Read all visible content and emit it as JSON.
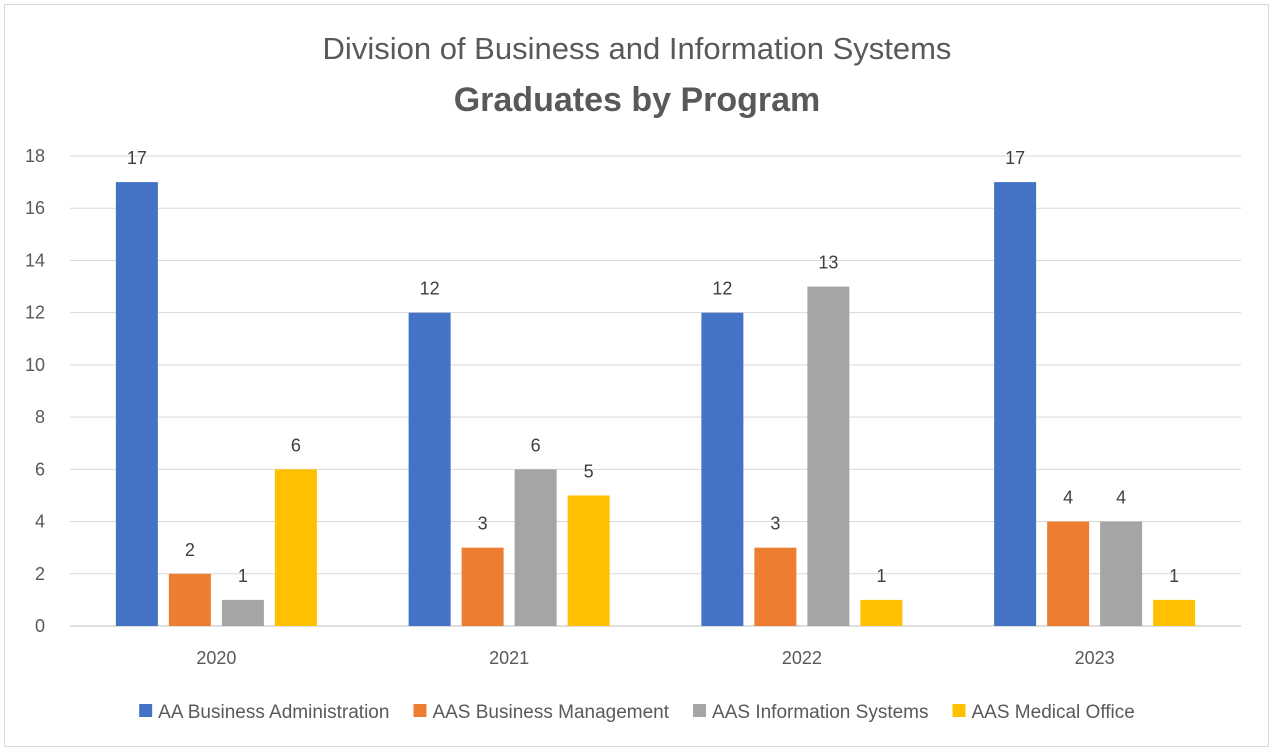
{
  "chart_data": {
    "type": "bar",
    "title": "Division of Business and Information Systems",
    "subtitle": "Graduates by Program",
    "categories": [
      "2020",
      "2021",
      "2022",
      "2023"
    ],
    "series": [
      {
        "name": "AA Business Administration",
        "color": "#4472C4",
        "values": [
          17,
          12,
          12,
          17
        ]
      },
      {
        "name": "AAS Business Management",
        "color": "#ED7D31",
        "values": [
          2,
          3,
          3,
          4
        ]
      },
      {
        "name": "AAS Information Systems",
        "color": "#A5A5A5",
        "values": [
          1,
          6,
          13,
          4
        ]
      },
      {
        "name": "AAS Medical Office",
        "color": "#FFC000",
        "values": [
          6,
          5,
          1,
          1
        ]
      }
    ],
    "ylim": [
      0,
      18
    ],
    "yticks": [
      "0",
      "2",
      "4",
      "6",
      "8",
      "10",
      "12",
      "14",
      "16",
      "18"
    ],
    "grid": true,
    "legend_position": "bottom",
    "data_labels": true
  }
}
